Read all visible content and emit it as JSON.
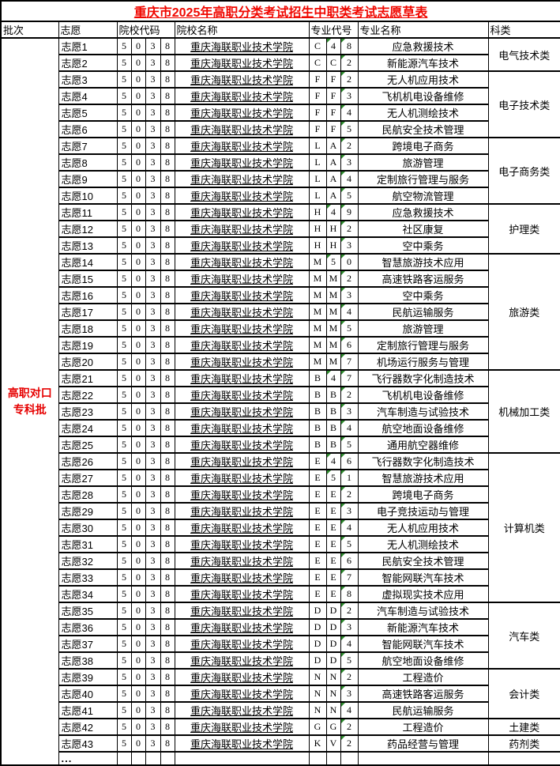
{
  "title": "重庆市2025年高职分类考试招生中职类考试志愿草表",
  "columns": {
    "batch": "批次",
    "preference": "志愿",
    "college_code": "院校代码",
    "college_name": "院校名称",
    "major_code": "专业代号",
    "major_name": "专业名称",
    "category": "科类"
  },
  "batch": {
    "line1": "高职对口",
    "line2": "专科批"
  },
  "college": {
    "code": [
      "5",
      "0",
      "3",
      "8"
    ],
    "name": "重庆海联职业技术学院"
  },
  "ellipsis_label": "...",
  "colors": {
    "title_red": "#f00700",
    "batch_red": "#e60000",
    "triangle_green": "#2e8b2e"
  },
  "rows": [
    {
      "pref": "志愿1",
      "code": [
        "C",
        "4",
        "8"
      ],
      "major": "应急救援技术"
    },
    {
      "pref": "志愿2",
      "code": [
        "C",
        "C",
        "2"
      ],
      "major": "新能源汽车技术"
    },
    {
      "pref": "志愿3",
      "code": [
        "F",
        "F",
        "2"
      ],
      "major": "无人机应用技术"
    },
    {
      "pref": "志愿4",
      "code": [
        "F",
        "F",
        "3"
      ],
      "major": "飞机机电设备维修"
    },
    {
      "pref": "志愿5",
      "code": [
        "F",
        "F",
        "4"
      ],
      "major": "无人机测绘技术"
    },
    {
      "pref": "志愿6",
      "code": [
        "F",
        "F",
        "5"
      ],
      "major": "民航安全技术管理"
    },
    {
      "pref": "志愿7",
      "code": [
        "L",
        "A",
        "2"
      ],
      "major": "跨境电子商务"
    },
    {
      "pref": "志愿8",
      "code": [
        "L",
        "A",
        "3"
      ],
      "major": "旅游管理"
    },
    {
      "pref": "志愿9",
      "code": [
        "L",
        "A",
        "4"
      ],
      "major": "定制旅行管理与服务"
    },
    {
      "pref": "志愿10",
      "code": [
        "L",
        "A",
        "5"
      ],
      "major": "航空物流管理"
    },
    {
      "pref": "志愿11",
      "code": [
        "H",
        "4",
        "9"
      ],
      "major": "应急救援技术"
    },
    {
      "pref": "志愿12",
      "code": [
        "H",
        "H",
        "2"
      ],
      "major": "社区康复"
    },
    {
      "pref": "志愿13",
      "code": [
        "H",
        "H",
        "3"
      ],
      "major": "空中乘务"
    },
    {
      "pref": "志愿14",
      "code": [
        "M",
        "5",
        "0"
      ],
      "major": "智慧旅游技术应用"
    },
    {
      "pref": "志愿15",
      "code": [
        "M",
        "M",
        "2"
      ],
      "major": "高速铁路客运服务"
    },
    {
      "pref": "志愿16",
      "code": [
        "M",
        "M",
        "3"
      ],
      "major": "空中乘务"
    },
    {
      "pref": "志愿17",
      "code": [
        "M",
        "M",
        "4"
      ],
      "major": "民航运输服务"
    },
    {
      "pref": "志愿18",
      "code": [
        "M",
        "M",
        "5"
      ],
      "major": "旅游管理"
    },
    {
      "pref": "志愿19",
      "code": [
        "M",
        "M",
        "6"
      ],
      "major": "定制旅行管理与服务"
    },
    {
      "pref": "志愿20",
      "code": [
        "M",
        "M",
        "7"
      ],
      "major": "机场运行服务与管理"
    },
    {
      "pref": "志愿21",
      "code": [
        "B",
        "4",
        "7"
      ],
      "major": "飞行器数字化制造技术"
    },
    {
      "pref": "志愿22",
      "code": [
        "B",
        "B",
        "2"
      ],
      "major": "飞机机电设备维修"
    },
    {
      "pref": "志愿23",
      "code": [
        "B",
        "B",
        "3"
      ],
      "major": "汽车制造与试验技术"
    },
    {
      "pref": "志愿24",
      "code": [
        "B",
        "B",
        "4"
      ],
      "major": "航空地面设备维修"
    },
    {
      "pref": "志愿25",
      "code": [
        "B",
        "B",
        "5"
      ],
      "major": "通用航空器维修"
    },
    {
      "pref": "志愿26",
      "code": [
        "E",
        "4",
        "6"
      ],
      "major": "飞行器数字化制造技术"
    },
    {
      "pref": "志愿27",
      "code": [
        "E",
        "5",
        "1"
      ],
      "major": "智慧旅游技术应用"
    },
    {
      "pref": "志愿28",
      "code": [
        "E",
        "E",
        "2"
      ],
      "major": "跨境电子商务"
    },
    {
      "pref": "志愿29",
      "code": [
        "E",
        "E",
        "3"
      ],
      "major": "电子竞技运动与管理"
    },
    {
      "pref": "志愿30",
      "code": [
        "E",
        "E",
        "4"
      ],
      "major": "无人机应用技术"
    },
    {
      "pref": "志愿31",
      "code": [
        "E",
        "E",
        "5"
      ],
      "major": "无人机测绘技术"
    },
    {
      "pref": "志愿32",
      "code": [
        "E",
        "E",
        "6"
      ],
      "major": "民航安全技术管理"
    },
    {
      "pref": "志愿33",
      "code": [
        "E",
        "E",
        "7"
      ],
      "major": "智能网联汽车技术"
    },
    {
      "pref": "志愿34",
      "code": [
        "E",
        "E",
        "8"
      ],
      "major": "虚拟现实技术应用"
    },
    {
      "pref": "志愿35",
      "code": [
        "D",
        "D",
        "2"
      ],
      "major": "汽车制造与试验技术"
    },
    {
      "pref": "志愿36",
      "code": [
        "D",
        "D",
        "3"
      ],
      "major": "新能源汽车技术"
    },
    {
      "pref": "志愿37",
      "code": [
        "D",
        "D",
        "4"
      ],
      "major": "智能网联汽车技术"
    },
    {
      "pref": "志愿38",
      "code": [
        "D",
        "D",
        "5"
      ],
      "major": "航空地面设备维修"
    },
    {
      "pref": "志愿39",
      "code": [
        "N",
        "N",
        "2"
      ],
      "major": "工程造价"
    },
    {
      "pref": "志愿40",
      "code": [
        "N",
        "N",
        "3"
      ],
      "major": "高速铁路客运服务"
    },
    {
      "pref": "志愿41",
      "code": [
        "N",
        "N",
        "4"
      ],
      "major": "民航运输服务"
    },
    {
      "pref": "志愿42",
      "code": [
        "G",
        "G",
        "2"
      ],
      "major": "工程造价"
    },
    {
      "pref": "志愿43",
      "code": [
        "K",
        "V",
        "2"
      ],
      "major": "药品经营与管理"
    }
  ],
  "category_groups": [
    {
      "label": "电气技术类",
      "rows": 2
    },
    {
      "label": "电子技术类",
      "rows": 4
    },
    {
      "label": "电子商务类",
      "rows": 4
    },
    {
      "label": "护理类",
      "rows": 3
    },
    {
      "label": "旅游类",
      "rows": 7
    },
    {
      "label": "机械加工类",
      "rows": 5
    },
    {
      "label": "计算机类",
      "rows": 9
    },
    {
      "label": "汽车类",
      "rows": 4
    },
    {
      "label": "会计类",
      "rows": 3
    },
    {
      "label": "土建类",
      "rows": 1
    },
    {
      "label": "药剂类",
      "rows": 1
    }
  ]
}
